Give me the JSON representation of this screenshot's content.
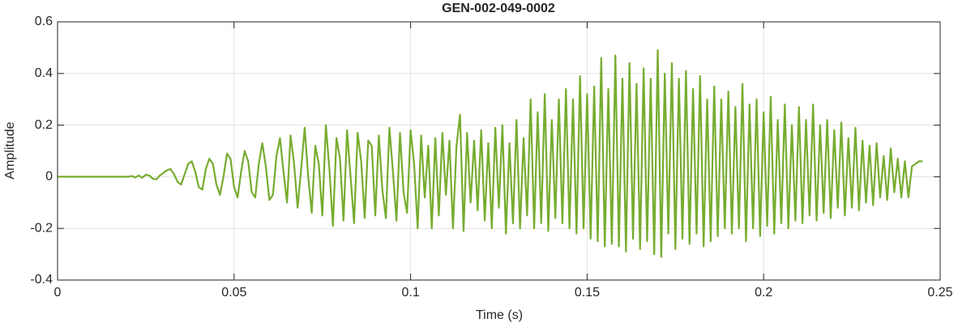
{
  "chart_data": {
    "type": "line",
    "title": "GEN-002-049-0002",
    "xlabel": "Time (s)",
    "ylabel": "Amplitude",
    "color": "#77ac30",
    "grid": true,
    "xlim": [
      0,
      0.25
    ],
    "xticks": [
      0,
      0.05,
      0.1,
      0.15,
      0.2,
      0.25
    ],
    "ylim": [
      -0.4,
      0.6
    ],
    "yticks": [
      -0.4,
      -0.2,
      0,
      0.2,
      0.4,
      0.6
    ],
    "x": [
      0,
      0.001,
      0.002,
      0.003,
      0.004,
      0.005,
      0.006,
      0.007,
      0.008,
      0.009,
      0.01,
      0.011,
      0.012,
      0.013,
      0.014,
      0.015,
      0.016,
      0.017,
      0.018,
      0.019,
      0.02,
      0.021,
      0.022,
      0.023,
      0.024,
      0.025,
      0.026,
      0.027,
      0.028,
      0.029,
      0.03,
      0.031,
      0.032,
      0.033,
      0.034,
      0.035,
      0.036,
      0.037,
      0.038,
      0.039,
      0.04,
      0.041,
      0.042,
      0.043,
      0.044,
      0.045,
      0.046,
      0.047,
      0.048,
      0.049,
      0.05,
      0.051,
      0.052,
      0.053,
      0.054,
      0.055,
      0.056,
      0.057,
      0.058,
      0.059,
      0.06,
      0.061,
      0.062,
      0.063,
      0.064,
      0.065,
      0.066,
      0.067,
      0.068,
      0.069,
      0.07,
      0.071,
      0.072,
      0.073,
      0.074,
      0.075,
      0.076,
      0.077,
      0.078,
      0.079,
      0.08,
      0.081,
      0.082,
      0.083,
      0.084,
      0.085,
      0.086,
      0.087,
      0.088,
      0.089,
      0.09,
      0.091,
      0.092,
      0.093,
      0.094,
      0.095,
      0.096,
      0.097,
      0.098,
      0.099,
      0.1,
      0.101,
      0.102,
      0.103,
      0.104,
      0.105,
      0.106,
      0.107,
      0.108,
      0.109,
      0.11,
      0.111,
      0.112,
      0.113,
      0.114,
      0.115,
      0.116,
      0.117,
      0.118,
      0.119,
      0.12,
      0.121,
      0.122,
      0.123,
      0.124,
      0.125,
      0.126,
      0.127,
      0.128,
      0.129,
      0.13,
      0.131,
      0.132,
      0.133,
      0.134,
      0.135,
      0.136,
      0.137,
      0.138,
      0.139,
      0.14,
      0.141,
      0.142,
      0.143,
      0.144,
      0.145,
      0.146,
      0.147,
      0.148,
      0.149,
      0.15,
      0.151,
      0.152,
      0.153,
      0.154,
      0.155,
      0.156,
      0.157,
      0.158,
      0.159,
      0.16,
      0.161,
      0.162,
      0.163,
      0.164,
      0.165,
      0.166,
      0.167,
      0.168,
      0.169,
      0.17,
      0.171,
      0.172,
      0.173,
      0.174,
      0.175,
      0.176,
      0.177,
      0.178,
      0.179,
      0.18,
      0.181,
      0.182,
      0.183,
      0.184,
      0.185,
      0.186,
      0.187,
      0.188,
      0.189,
      0.19,
      0.191,
      0.192,
      0.193,
      0.194,
      0.195,
      0.196,
      0.197,
      0.198,
      0.199,
      0.2,
      0.201,
      0.202,
      0.203,
      0.204,
      0.205,
      0.206,
      0.207,
      0.208,
      0.209,
      0.21,
      0.211,
      0.212,
      0.213,
      0.214,
      0.215,
      0.216,
      0.217,
      0.218,
      0.219,
      0.22,
      0.221,
      0.222,
      0.223,
      0.224,
      0.225,
      0.226,
      0.227,
      0.228,
      0.229,
      0.23,
      0.231,
      0.232,
      0.233,
      0.234,
      0.235,
      0.236,
      0.237,
      0.238,
      0.239,
      0.24,
      0.241,
      0.242,
      0.243,
      0.244,
      0.245
    ],
    "values": [
      0,
      0,
      0,
      0,
      0,
      0,
      0,
      0,
      0,
      0,
      0,
      0,
      0,
      0,
      0,
      0,
      0,
      0,
      0,
      0,
      0,
      0.003,
      -0.003,
      0.005,
      -0.004,
      0.008,
      0.005,
      -0.008,
      -0.01,
      0.005,
      0.015,
      0.025,
      0.03,
      0.01,
      -0.02,
      -0.03,
      0.01,
      0.05,
      0.06,
      0.02,
      -0.04,
      -0.05,
      0.03,
      0.07,
      0.05,
      -0.03,
      -0.07,
      0,
      0.09,
      0.07,
      -0.04,
      -0.08,
      0.02,
      0.1,
      0.06,
      -0.06,
      -0.08,
      0.05,
      0.13,
      0.04,
      -0.09,
      -0.07,
      0.08,
      0.15,
      0.02,
      -0.1,
      0.16,
      0.05,
      -0.12,
      0.03,
      0.19,
      0,
      -0.14,
      0.12,
      0.05,
      -0.15,
      0.2,
      0.03,
      -0.19,
      0.15,
      0.07,
      -0.17,
      0.18,
      0,
      -0.18,
      0.17,
      0.06,
      -0.16,
      0.14,
      0.12,
      -0.15,
      0.16,
      -0.05,
      -0.16,
      0.19,
      0.02,
      -0.17,
      0.17,
      -0.06,
      -0.14,
      0.18,
      0.05,
      -0.2,
      0.16,
      -0.08,
      0.12,
      -0.2,
      0.15,
      -0.15,
      0.17,
      -0.07,
      0.14,
      -0.2,
      0.12,
      0.24,
      -0.21,
      0.17,
      -0.1,
      0.14,
      -0.13,
      0.18,
      -0.17,
      0.13,
      -0.2,
      0.19,
      -0.12,
      0.2,
      -0.22,
      0.13,
      -0.18,
      0.22,
      -0.2,
      0.15,
      -0.15,
      0.3,
      -0.2,
      0.25,
      -0.18,
      0.32,
      -0.21,
      0.22,
      -0.16,
      0.3,
      -0.18,
      0.34,
      -0.2,
      0.3,
      -0.22,
      0.39,
      -0.2,
      0.32,
      -0.24,
      0.35,
      -0.25,
      0.46,
      -0.27,
      0.34,
      -0.26,
      0.47,
      -0.27,
      0.38,
      -0.29,
      0.44,
      -0.24,
      0.36,
      -0.28,
      0.42,
      -0.25,
      0.38,
      -0.3,
      0.49,
      -0.31,
      0.4,
      -0.22,
      0.44,
      -0.28,
      0.38,
      -0.24,
      0.41,
      -0.26,
      0.34,
      -0.22,
      0.39,
      -0.27,
      0.3,
      -0.25,
      0.35,
      -0.23,
      0.3,
      -0.2,
      0.33,
      -0.22,
      0.27,
      -0.2,
      0.36,
      -0.25,
      0.28,
      -0.2,
      0.3,
      -0.23,
      0.25,
      -0.19,
      0.31,
      -0.22,
      0.22,
      -0.18,
      0.28,
      -0.2,
      0.2,
      -0.17,
      0.27,
      -0.18,
      0.22,
      -0.15,
      0.28,
      -0.17,
      0.2,
      -0.14,
      0.22,
      -0.16,
      0.18,
      -0.12,
      0.21,
      -0.15,
      0.15,
      -0.12,
      0.19,
      -0.13,
      0.14,
      -0.1,
      0.12,
      -0.11,
      0.13,
      -0.08,
      0.08,
      -0.09,
      0.11,
      -0.06,
      0.07,
      -0.08,
      0.06,
      -0.08,
      0.04,
      0.05,
      0.06,
      0.06
    ]
  }
}
